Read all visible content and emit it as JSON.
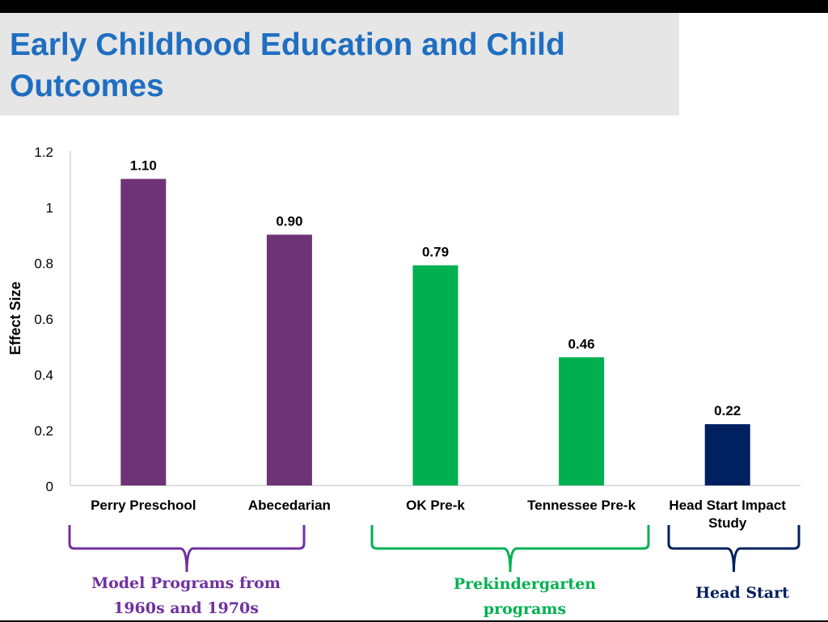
{
  "slide": {
    "title": "Early Childhood Education and Child Outcomes"
  },
  "chart_data": {
    "type": "bar",
    "ylabel": "Effect Size",
    "ylim": [
      0,
      1.2
    ],
    "yticks": [
      "0",
      "0.2",
      "0.4",
      "0.6",
      "0.8",
      "1",
      "1.2"
    ],
    "grid": false,
    "legend": "none",
    "categories": [
      "Perry Preschool",
      "Abecedarian",
      "OK Pre-k",
      "Tennessee Pre-k",
      "Head Start Impact Study"
    ],
    "values": [
      1.1,
      0.9,
      0.79,
      0.46,
      0.22
    ],
    "value_labels": [
      "1.10",
      "0.90",
      "0.79",
      "0.46",
      "0.22"
    ],
    "bar_colors": [
      "#6e3374",
      "#6e3374",
      "#00b050",
      "#00b050",
      "#002060"
    ],
    "groups": [
      {
        "label": "Model Programs from 1960s and 1970s",
        "members": [
          "Perry Preschool",
          "Abecedarian"
        ],
        "color": "#7030a0"
      },
      {
        "label": "Prekindergarten programs",
        "members": [
          "OK Pre-k",
          "Tennessee Pre-k"
        ],
        "color": "#00b050"
      },
      {
        "label": "Head Start",
        "members": [
          "Head Start Impact Study"
        ],
        "color": "#002060"
      }
    ]
  }
}
